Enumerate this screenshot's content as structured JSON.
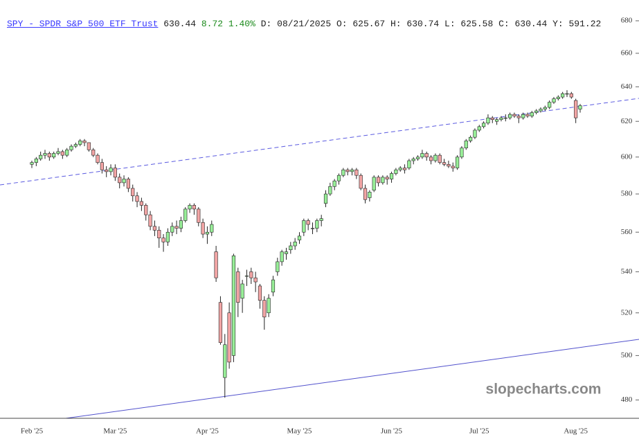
{
  "header": {
    "link": "SPY - SPDR S&P 500 ETF Trust",
    "price": "630.44",
    "change": "8.72",
    "change_pct": "1.40%",
    "details": [
      "D: 08/21/2025",
      "O: 625.67",
      "H: 630.74",
      "L: 625.58",
      "C: 630.44",
      "Y: 591.22"
    ]
  },
  "chart_data": {
    "type": "candlestick",
    "watermark": "slopecharts.com",
    "log_scale": true,
    "ylim": [
      472,
      680
    ],
    "yticks": [
      480,
      500,
      520,
      540,
      560,
      580,
      600,
      620,
      640,
      660,
      680
    ],
    "up_color": "#98ee98",
    "down_color": "#f2a5a5",
    "edge_color": "#222222",
    "categories": [
      "Feb '25",
      null,
      null,
      null,
      null,
      null,
      null,
      null,
      null,
      null,
      null,
      null,
      null,
      null,
      null,
      null,
      null,
      null,
      null,
      "Mar '25",
      null,
      null,
      null,
      null,
      null,
      null,
      null,
      null,
      null,
      null,
      null,
      null,
      null,
      null,
      null,
      null,
      null,
      null,
      null,
      null,
      "Apr '25",
      null,
      null,
      null,
      null,
      null,
      null,
      null,
      null,
      null,
      null,
      null,
      null,
      null,
      null,
      null,
      null,
      null,
      null,
      null,
      null,
      "May '25",
      null,
      null,
      null,
      null,
      null,
      null,
      null,
      null,
      null,
      null,
      null,
      null,
      null,
      null,
      null,
      null,
      null,
      null,
      null,
      null,
      "Jun '25",
      null,
      null,
      null,
      null,
      null,
      null,
      null,
      null,
      null,
      null,
      null,
      null,
      null,
      null,
      null,
      null,
      null,
      null,
      null,
      "Jul '25",
      null,
      null,
      null,
      null,
      null,
      null,
      null,
      null,
      null,
      null,
      null,
      null,
      null,
      null,
      null,
      null,
      null,
      null,
      null,
      null,
      null,
      "Aug '25",
      null
    ],
    "ohlc": [
      [
        596,
        598,
        594,
        597
      ],
      [
        597,
        600,
        595,
        599
      ],
      [
        599,
        603,
        598,
        601
      ],
      [
        601,
        604,
        599,
        602
      ],
      [
        602,
        603,
        598,
        600
      ],
      [
        600,
        603,
        599,
        602
      ],
      [
        602,
        605,
        601,
        603
      ],
      [
        603,
        604,
        599,
        601
      ],
      [
        601,
        605,
        600,
        604
      ],
      [
        604,
        607,
        603,
        606
      ],
      [
        606,
        608,
        605,
        607
      ],
      [
        607,
        610,
        606,
        609
      ],
      [
        609,
        610,
        606,
        608
      ],
      [
        608,
        608,
        603,
        604
      ],
      [
        604,
        605,
        600,
        601
      ],
      [
        601,
        602,
        596,
        597
      ],
      [
        597,
        599,
        591,
        593
      ],
      [
        593,
        595,
        589,
        592
      ],
      [
        592,
        596,
        590,
        594
      ],
      [
        594,
        596,
        587,
        589
      ],
      [
        589,
        591,
        583,
        586
      ],
      [
        586,
        590,
        584,
        588
      ],
      [
        588,
        589,
        581,
        583
      ],
      [
        583,
        585,
        576,
        579
      ],
      [
        579,
        581,
        573,
        576
      ],
      [
        576,
        578,
        571,
        574
      ],
      [
        574,
        575,
        566,
        569
      ],
      [
        569,
        571,
        561,
        563
      ],
      [
        563,
        566,
        558,
        561
      ],
      [
        561,
        563,
        552,
        557
      ],
      [
        557,
        559,
        550,
        555
      ],
      [
        555,
        562,
        553,
        560
      ],
      [
        560,
        565,
        558,
        563
      ],
      [
        563,
        566,
        559,
        562
      ],
      [
        562,
        568,
        560,
        566
      ],
      [
        566,
        573,
        565,
        572
      ],
      [
        572,
        575,
        570,
        574
      ],
      [
        574,
        575,
        569,
        572
      ],
      [
        572,
        573,
        563,
        565
      ],
      [
        565,
        567,
        557,
        559
      ],
      [
        559,
        563,
        554,
        560
      ],
      [
        560,
        566,
        558,
        564
      ],
      [
        550,
        553,
        535,
        537
      ],
      [
        525,
        528,
        505,
        506
      ],
      [
        490,
        510,
        481,
        505
      ],
      [
        520,
        525,
        494,
        497
      ],
      [
        500,
        549,
        497,
        548
      ],
      [
        540,
        542,
        518,
        525
      ],
      [
        527,
        536,
        520,
        534
      ],
      [
        538,
        541,
        533,
        538
      ],
      [
        540,
        542,
        534,
        537
      ],
      [
        537,
        540,
        530,
        535
      ],
      [
        533,
        534,
        522,
        526
      ],
      [
        526,
        528,
        512,
        518
      ],
      [
        520,
        529,
        518,
        527
      ],
      [
        530,
        538,
        528,
        536
      ],
      [
        540,
        547,
        538,
        545
      ],
      [
        545,
        551,
        543,
        550
      ],
      [
        549,
        552,
        546,
        550
      ],
      [
        551,
        555,
        549,
        553
      ],
      [
        553,
        557,
        551,
        555
      ],
      [
        556,
        560,
        554,
        558
      ],
      [
        560,
        567,
        558,
        566
      ],
      [
        566,
        567,
        561,
        564
      ],
      [
        562,
        565,
        559,
        562
      ],
      [
        562,
        567,
        560,
        566
      ],
      [
        566,
        569,
        563,
        567
      ],
      [
        575,
        582,
        573,
        580
      ],
      [
        580,
        586,
        579,
        584
      ],
      [
        584,
        588,
        582,
        587
      ],
      [
        587,
        591,
        585,
        590
      ],
      [
        590,
        594,
        589,
        593
      ],
      [
        593,
        594,
        590,
        592
      ],
      [
        592,
        594,
        590,
        593
      ],
      [
        593,
        594,
        588,
        590
      ],
      [
        590,
        591,
        582,
        583
      ],
      [
        583,
        585,
        575,
        577
      ],
      [
        578,
        582,
        576,
        581
      ],
      [
        582,
        590,
        581,
        589
      ],
      [
        589,
        590,
        584,
        586
      ],
      [
        586,
        590,
        585,
        589
      ],
      [
        589,
        590,
        585,
        588
      ],
      [
        588,
        592,
        586,
        591
      ],
      [
        591,
        594,
        590,
        593
      ],
      [
        593,
        595,
        592,
        594
      ],
      [
        594,
        596,
        591,
        593
      ],
      [
        594,
        599,
        593,
        598
      ],
      [
        598,
        600,
        596,
        599
      ],
      [
        599,
        601,
        598,
        600
      ],
      [
        600,
        604,
        599,
        602
      ],
      [
        602,
        603,
        598,
        600
      ],
      [
        600,
        601,
        596,
        598
      ],
      [
        598,
        602,
        597,
        601
      ],
      [
        601,
        602,
        596,
        597
      ],
      [
        597,
        599,
        595,
        596
      ],
      [
        596,
        598,
        594,
        595
      ],
      [
        595,
        597,
        592,
        594
      ],
      [
        594,
        601,
        593,
        600
      ],
      [
        600,
        606,
        599,
        605
      ],
      [
        605,
        610,
        604,
        609
      ],
      [
        609,
        612,
        608,
        611
      ],
      [
        611,
        616,
        610,
        615
      ],
      [
        615,
        618,
        614,
        617
      ],
      [
        617,
        620,
        616,
        619
      ],
      [
        619,
        624,
        618,
        622
      ],
      [
        622,
        623,
        619,
        621
      ],
      [
        620,
        622,
        618,
        621
      ],
      [
        621,
        623,
        620,
        622
      ],
      [
        622,
        624,
        620,
        622
      ],
      [
        622,
        625,
        621,
        624
      ],
      [
        624,
        625,
        622,
        623
      ],
      [
        623,
        624,
        619,
        622
      ],
      [
        622,
        625,
        621,
        624
      ],
      [
        624,
        625,
        622,
        623
      ],
      [
        623,
        626,
        622,
        625
      ],
      [
        625,
        627,
        624,
        626
      ],
      [
        626,
        628,
        625,
        627
      ],
      [
        627,
        629,
        626,
        628
      ],
      [
        628,
        632,
        627,
        631
      ],
      [
        631,
        634,
        630,
        633
      ],
      [
        633,
        635,
        632,
        634
      ],
      [
        634,
        637,
        633,
        636
      ],
      [
        636,
        638,
        634,
        636
      ],
      [
        636,
        637,
        633,
        634
      ],
      [
        632,
        633,
        619,
        622
      ],
      [
        627,
        630,
        625,
        629
      ]
    ]
  }
}
